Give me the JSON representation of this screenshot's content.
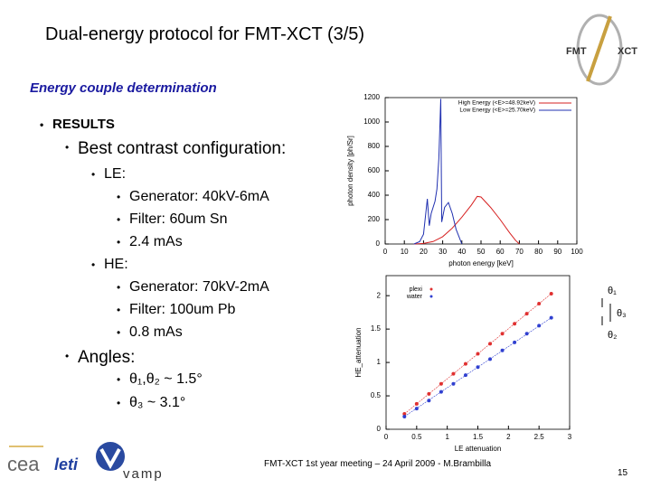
{
  "slide": {
    "title": "Dual-energy protocol for FMT-XCT (3/5)",
    "subtitle": "Energy couple determination",
    "lines": [
      "RESULTS",
      "Best contrast configuration:",
      "LE:",
      "Generator: 40kV-6mA",
      "Filter: 60um Sn",
      "2.4 mAs",
      "HE:",
      "Generator: 70kV-2mA",
      "Filter: 100um Pb",
      "0.8 mAs",
      "Angles:",
      "θ₁,θ₂ ~ 1.5°",
      "θ₃ ~ 3.1°"
    ],
    "footer": "FMT-XCT 1st year meeting – 24 April 2009 - M.Brambilla",
    "page": "15",
    "logos": [
      "cea",
      "leti",
      "vamp",
      "FMT",
      "XCT"
    ]
  },
  "chart_data": [
    {
      "type": "line",
      "xlabel": "photon energy [keV]",
      "ylabel": "photon density [ph/Sr]",
      "xlim": [
        0,
        100
      ],
      "xticks": [
        0,
        10,
        20,
        30,
        40,
        50,
        60,
        70,
        80,
        90,
        100
      ],
      "ylim": [
        0,
        1200
      ],
      "yticks": [
        0,
        200,
        400,
        600,
        800,
        1000,
        1200
      ],
      "legend": "top-right",
      "series": [
        {
          "name": "High Energy (<E>=48.92keV)",
          "color": "#d62020",
          "x": [
            15,
            20,
            25,
            30,
            35,
            40,
            45,
            48,
            50,
            55,
            60,
            65,
            68,
            70
          ],
          "values": [
            0,
            5,
            20,
            60,
            130,
            220,
            320,
            390,
            385,
            300,
            200,
            90,
            30,
            0
          ]
        },
        {
          "name": "Low Energy (<E>=25.70keV)",
          "color": "#2030b0",
          "x": [
            15,
            18,
            20,
            22,
            23,
            24,
            26,
            27,
            28,
            29,
            29.5,
            31,
            33,
            35,
            37,
            40
          ],
          "values": [
            0,
            20,
            80,
            370,
            150,
            250,
            350,
            450,
            700,
            1190,
            180,
            300,
            340,
            250,
            120,
            0
          ]
        }
      ]
    },
    {
      "type": "scatter",
      "xlabel": "LE attenuation",
      "ylabel": "HE_attenuation",
      "xlim": [
        0,
        3
      ],
      "xticks": [
        0,
        0.5,
        1,
        1.5,
        2,
        2.5,
        3
      ],
      "ylim": [
        0,
        2.3
      ],
      "yticks": [
        0,
        0.5,
        1,
        1.5,
        2
      ],
      "legend": "top-left",
      "series": [
        {
          "name": "plexi",
          "color": "#e03030",
          "x": [
            0.3,
            0.5,
            0.7,
            0.9,
            1.1,
            1.3,
            1.5,
            1.7,
            1.9,
            2.1,
            2.3,
            2.5,
            2.7
          ],
          "values": [
            0.23,
            0.38,
            0.53,
            0.68,
            0.83,
            0.98,
            1.13,
            1.28,
            1.43,
            1.58,
            1.73,
            1.88,
            2.03
          ]
        },
        {
          "name": "water",
          "color": "#3040d0",
          "x": [
            0.3,
            0.5,
            0.7,
            0.9,
            1.1,
            1.3,
            1.5,
            1.7,
            1.9,
            2.1,
            2.3,
            2.5,
            2.7
          ],
          "values": [
            0.19,
            0.31,
            0.43,
            0.56,
            0.68,
            0.81,
            0.93,
            1.05,
            1.18,
            1.3,
            1.43,
            1.55,
            1.67
          ]
        }
      ],
      "annotations": [
        "θ₁",
        "θ₃",
        "θ₂"
      ]
    }
  ]
}
